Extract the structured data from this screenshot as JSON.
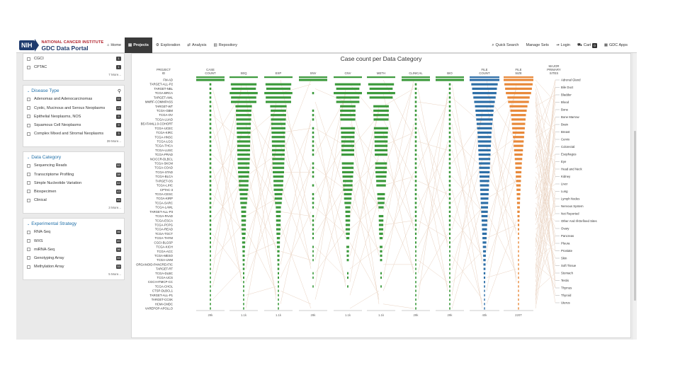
{
  "header": {
    "nih": "NIH",
    "institute": "NATIONAL CANCER INSTITUTE",
    "portal": "GDC Data Portal",
    "nav": [
      {
        "label": "Home",
        "icon": "home-icon"
      },
      {
        "label": "Projects",
        "icon": "projects-icon"
      },
      {
        "label": "Exploration",
        "icon": "exploration-icon"
      },
      {
        "label": "Analysis",
        "icon": "analysis-icon"
      },
      {
        "label": "Repository",
        "icon": "repository-icon"
      }
    ],
    "right": [
      {
        "label": "Quick Search",
        "icon": "search-icon"
      },
      {
        "label": "Manage Sets",
        "icon": ""
      },
      {
        "label": "Login",
        "icon": "login-icon"
      },
      {
        "label": "Cart",
        "icon": "cart-icon",
        "badge": "0"
      },
      {
        "label": "GDC Apps",
        "icon": "apps-icon"
      }
    ]
  },
  "sidebar": {
    "program": {
      "items": [
        {
          "label": "CGCI",
          "count": "1"
        },
        {
          "label": "CPTAC",
          "count": "1"
        }
      ],
      "more": "7 More..."
    },
    "disease": {
      "title": "Disease Type",
      "items": [
        {
          "label": "Adenomas and Adenocarcinomas",
          "count": "33"
        },
        {
          "label": "Cystic, Mucinous and Serous Neoplasms",
          "count": "13"
        },
        {
          "label": "Epithelial Neoplasms, NOS",
          "count": "9"
        },
        {
          "label": "Squamous Cell Neoplasms",
          "count": "9"
        },
        {
          "label": "Complex Mixed and Stromal Neoplasms",
          "count": "3"
        }
      ],
      "more": "39 More..."
    },
    "category": {
      "title": "Data Category",
      "items": [
        {
          "label": "Sequencing Reads",
          "count": "52"
        },
        {
          "label": "Transcriptome Profiling",
          "count": "38"
        },
        {
          "label": "Simple Nucleotide Variation",
          "count": "42"
        },
        {
          "label": "Biospecimen",
          "count": "43"
        },
        {
          "label": "Clinical",
          "count": "43"
        }
      ],
      "more": "3 More..."
    },
    "strategy": {
      "title": "Experimental Strategy",
      "items": [
        {
          "label": "RNA-Seq",
          "count": "36"
        },
        {
          "label": "WXS",
          "count": "40"
        },
        {
          "label": "miRNA-Seq",
          "count": "36"
        },
        {
          "label": "Genotyping Array",
          "count": "33"
        },
        {
          "label": "Methylation Array",
          "count": "33"
        }
      ],
      "more": "5 More..."
    }
  },
  "chart_data": {
    "type": "bar",
    "title": "Case count per Data Category",
    "columns": [
      "PROJECT ID",
      "CASE COUNT",
      "SEQ",
      "EXP",
      "SNV",
      "CNV",
      "METH",
      "CLINICAL",
      "BIO",
      "FILE COUNT",
      "FILE SIZE",
      "MAJOR PRIMARY SITES"
    ],
    "footers": [
      "",
      "29k",
      "1.1k",
      "1.1k",
      "29k",
      "1.1k",
      "1.1k",
      "29k",
      "29k",
      "40k",
      "220T",
      ""
    ],
    "projects": [
      "FM-AD",
      "TARGET-ALL-P2",
      "TARGET-NBL",
      "TCGA-BRCA",
      "TARGET-AML",
      "MMRF-COMMPASS",
      "TARGET-WT",
      "TCGA-GBM",
      "TCGA-OV",
      "TCGA-LUAD",
      "BEATAML1.0-COHORT",
      "TCGA-UCEC",
      "TCGA-KIRC",
      "TCGA-HNSC",
      "TCGA-LGG",
      "TCGA-THCA",
      "TCGA-LUSC",
      "TCGA-PRAD",
      "NCICCR-DLBCL",
      "TCGA-SKCM",
      "TCGA-COAD",
      "TCGA-STAD",
      "TCGA-BLCA",
      "TARGET-OS",
      "TCGA-LIHC",
      "CPTAC-3",
      "TCGA-CESC",
      "TCGA-KIRP",
      "TCGA-SARC",
      "TCGA-LAML",
      "TARGET-ALL-P3",
      "TCGA-PAAD",
      "TCGA-ESCA",
      "TCGA-PCPG",
      "TCGA-READ",
      "TCGA-TGCT",
      "TCGA-THYM",
      "CGCI-BLGSP",
      "TCGA-KICH",
      "TCGA-ACC",
      "TCGA-MESO",
      "TCGA-UVM",
      "ORGANOID-PANCREATIC",
      "TARGET-RT",
      "TCGA-DLBC",
      "TCGA-UCS",
      "CGCI-HTMCP-CC",
      "TCGA-CHOL",
      "CTSP-DLBCL1",
      "TARGET-ALL-P1",
      "TARGET-CCSK",
      "HCMI-CMDC",
      "VAREPOP-APOLLO"
    ],
    "case_count": [
      18004,
      1587,
      1120,
      1098,
      988,
      995,
      652,
      617,
      608,
      585,
      562,
      560,
      537,
      528,
      516,
      507,
      504,
      500,
      489,
      470,
      461,
      443,
      412,
      383,
      377,
      369,
      307,
      291,
      261,
      200,
      191,
      185,
      185,
      179,
      172,
      150,
      124,
      120,
      113,
      92,
      87,
      80,
      70,
      69,
      58,
      57,
      39,
      51,
      45,
      24,
      13,
      9,
      7
    ],
    "seq": [
      0,
      1000,
      950,
      1090,
      980,
      990,
      640,
      600,
      600,
      580,
      560,
      550,
      530,
      520,
      510,
      500,
      500,
      490,
      480,
      460,
      450,
      440,
      410,
      380,
      370,
      360,
      300,
      290,
      260,
      200,
      190,
      180,
      180,
      170,
      170,
      150,
      120,
      120,
      110,
      90,
      85,
      80,
      70,
      68,
      55,
      55,
      38,
      50,
      44,
      22,
      12,
      8,
      6
    ],
    "exp": [
      0,
      1000,
      940,
      1090,
      980,
      990,
      640,
      600,
      600,
      580,
      560,
      550,
      530,
      520,
      510,
      500,
      500,
      490,
      480,
      460,
      450,
      440,
      410,
      380,
      370,
      360,
      300,
      290,
      260,
      200,
      190,
      180,
      180,
      170,
      170,
      150,
      120,
      120,
      110,
      90,
      85,
      80,
      70,
      68,
      55,
      55,
      38,
      50,
      44,
      22,
      12,
      8,
      6
    ],
    "snv": [
      18004,
      0,
      0,
      1044,
      0,
      0,
      0,
      595,
      443,
      570,
      0,
      560,
      355,
      528,
      516,
      506,
      500,
      498,
      0,
      470,
      450,
      441,
      412,
      0,
      375,
      0,
      307,
      291,
      260,
      150,
      0,
      185,
      185,
      179,
      172,
      150,
      124,
      0,
      113,
      92,
      87,
      80,
      0,
      0,
      58,
      57,
      0,
      51,
      0,
      0,
      0,
      0,
      0
    ],
    "cnv": [
      0,
      1000,
      900,
      1098,
      900,
      900,
      600,
      600,
      600,
      580,
      0,
      560,
      530,
      520,
      510,
      500,
      500,
      490,
      0,
      460,
      450,
      440,
      410,
      380,
      370,
      360,
      300,
      290,
      260,
      200,
      190,
      180,
      180,
      170,
      170,
      150,
      120,
      0,
      110,
      90,
      85,
      80,
      0,
      0,
      55,
      55,
      0,
      50,
      0,
      0,
      0,
      0,
      0
    ],
    "meth": [
      0,
      1000,
      900,
      1095,
      900,
      0,
      600,
      600,
      600,
      580,
      0,
      560,
      530,
      520,
      510,
      500,
      500,
      490,
      0,
      460,
      450,
      440,
      410,
      380,
      370,
      0,
      300,
      290,
      260,
      200,
      0,
      180,
      180,
      170,
      170,
      150,
      120,
      0,
      110,
      90,
      85,
      80,
      0,
      0,
      55,
      55,
      0,
      50,
      0,
      0,
      0,
      0,
      0
    ],
    "clinical": [
      18004,
      1587,
      1120,
      1098,
      988,
      995,
      652,
      617,
      608,
      585,
      562,
      560,
      537,
      528,
      516,
      507,
      504,
      500,
      489,
      470,
      461,
      443,
      412,
      383,
      377,
      369,
      307,
      291,
      261,
      200,
      191,
      185,
      185,
      179,
      172,
      150,
      124,
      120,
      113,
      92,
      87,
      80,
      70,
      69,
      58,
      57,
      39,
      51,
      45,
      24,
      13,
      9,
      7
    ],
    "bio": [
      18004,
      1587,
      1120,
      1098,
      988,
      995,
      652,
      617,
      608,
      585,
      562,
      560,
      537,
      528,
      516,
      507,
      504,
      500,
      489,
      470,
      461,
      443,
      412,
      383,
      377,
      369,
      307,
      291,
      261,
      200,
      191,
      185,
      185,
      179,
      172,
      150,
      124,
      120,
      113,
      92,
      87,
      80,
      70,
      69,
      58,
      57,
      39,
      51,
      45,
      24,
      13,
      9,
      7
    ],
    "file_count": [
      36000,
      32000,
      30000,
      29000,
      27000,
      25000,
      23000,
      22000,
      21000,
      20000,
      19000,
      18000,
      17000,
      16500,
      16000,
      15500,
      15000,
      14500,
      14000,
      13500,
      13000,
      12500,
      12000,
      11500,
      11000,
      10500,
      10000,
      9500,
      9000,
      8500,
      8000,
      7500,
      7000,
      6500,
      6000,
      5500,
      5000,
      4500,
      4000,
      3500,
      3200,
      2900,
      2600,
      2300,
      2000,
      1800,
      1600,
      1400,
      1200,
      1000,
      800,
      600,
      400
    ],
    "file_size": [
      200,
      190,
      180,
      170,
      150,
      140,
      120,
      110,
      100,
      95,
      90,
      85,
      80,
      75,
      70,
      65,
      60,
      55,
      50,
      45,
      42,
      39,
      36,
      33,
      30,
      27,
      24,
      22,
      20,
      18,
      16,
      14,
      12,
      10,
      9,
      8,
      7,
      6,
      5,
      4.5,
      4,
      3.5,
      3,
      2.5,
      2,
      1.8,
      1.6,
      1.4,
      1.2,
      1,
      0.8,
      0.6,
      0.4
    ],
    "primary_sites": [
      "Adrenal Gland",
      "Bile Duct",
      "Bladder",
      "Blood",
      "Bone",
      "Bone Marrow",
      "Brain",
      "Breast",
      "Cervix",
      "Colorectal",
      "Esophagus",
      "Eye",
      "Head and Neck",
      "Kidney",
      "Liver",
      "Lung",
      "Lymph Nodes",
      "Nervous System",
      "Not Reported",
      "Other And Ill-Defined Sites",
      "Ovary",
      "Pancreas",
      "Pleura",
      "Prostate",
      "Skin",
      "Soft Tissue",
      "Stomach",
      "Testis",
      "Thymus",
      "Thyroid",
      "Uterus"
    ],
    "colors": {
      "green": "#3c9a3c",
      "blue": "#2e6fa7",
      "orange": "#e8893a",
      "link": "#e9d2c0"
    }
  }
}
